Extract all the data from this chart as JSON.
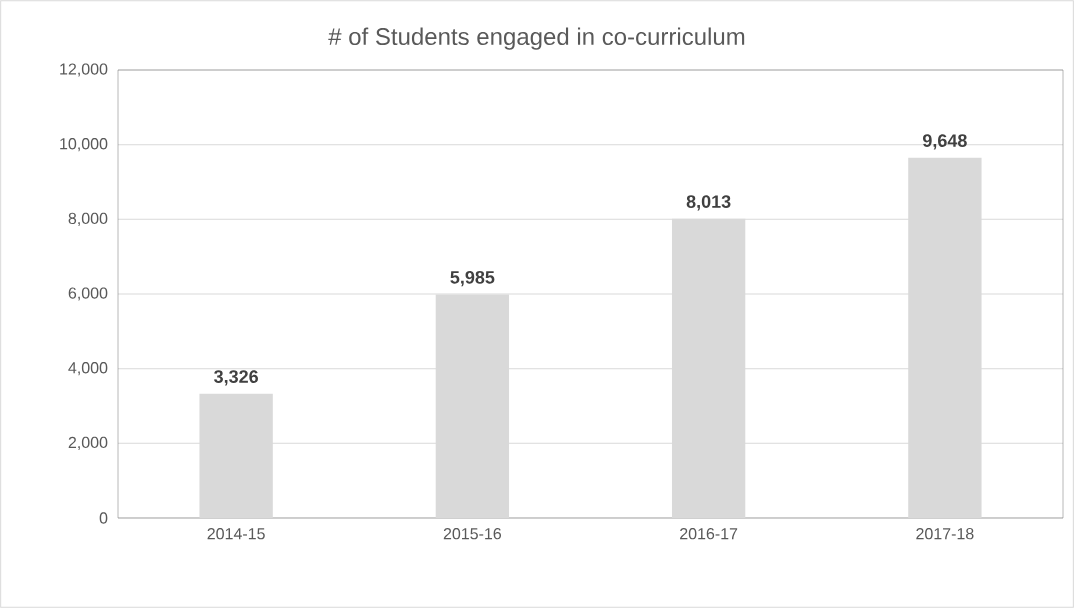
{
  "chart_data": {
    "type": "bar",
    "title": "# of Students engaged in co-curriculum",
    "categories": [
      "2014-15",
      "2015-16",
      "2016-17",
      "2017-18"
    ],
    "values": [
      3326,
      5985,
      8013,
      9648
    ],
    "value_labels": [
      "3,326",
      "5,985",
      "8,013",
      "9,648"
    ],
    "color": "#d9d9d9",
    "ylim": [
      0,
      12000
    ],
    "yticks": [
      {
        "value": 0,
        "label": "0"
      },
      {
        "value": 2000,
        "label": "2,000"
      },
      {
        "value": 4000,
        "label": "4,000"
      },
      {
        "value": 6000,
        "label": "6,000"
      },
      {
        "value": 8000,
        "label": "8,000"
      },
      {
        "value": 10000,
        "label": "10,000"
      },
      {
        "value": 12000,
        "label": "12,000"
      }
    ],
    "grid": "y"
  }
}
